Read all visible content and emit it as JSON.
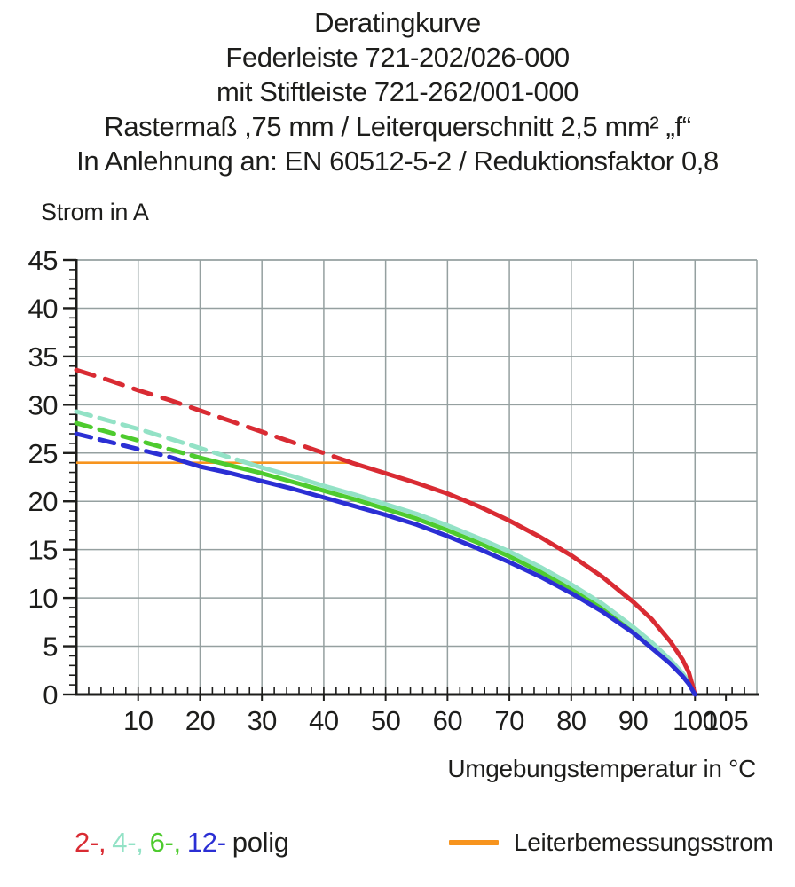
{
  "title": {
    "lines": [
      "Deratingkurve",
      "Federleiste 721-202/026-000",
      "mit Stiftleiste 721-262/001-000",
      "Rastermaß ,75 mm / Leiterquerschnitt 2,5 mm² „f“",
      "In Anlehnung an: EN 60512-5-2 / Reduktionsfaktor 0,8"
    ]
  },
  "axes": {
    "y_label": "Strom in A",
    "x_label": "Umgebungstemperatur in °C"
  },
  "legend": {
    "poles": [
      {
        "label": "2-,",
        "color": "#d92b33"
      },
      {
        "label": "4-,",
        "color": "#93e2c6"
      },
      {
        "label": "6-,",
        "color": "#4ecb2e"
      },
      {
        "label": "12-",
        "color": "#2b2fd4"
      }
    ],
    "suffix": "polig",
    "rated_label": "Leiterbemessungsstrom",
    "rated_color": "#f7941e"
  },
  "chart_data": {
    "type": "line",
    "title": "Deratingkurve",
    "xlabel": "Umgebungstemperatur in °C",
    "ylabel": "Strom in A",
    "xlim": [
      0,
      110
    ],
    "ylim": [
      0,
      45
    ],
    "xticks": [
      10,
      20,
      30,
      40,
      50,
      60,
      70,
      80,
      90,
      100,
      105
    ],
    "yticks": [
      0,
      5,
      10,
      15,
      20,
      25,
      30,
      35,
      40,
      45
    ],
    "x_gridlines": [
      10,
      20,
      30,
      40,
      50,
      60,
      70,
      80,
      90,
      100
    ],
    "y_gridlines": [
      5,
      10,
      15,
      20,
      25,
      30,
      35,
      40,
      45
    ],
    "x_minor_step": 2,
    "y_minor_step": 1,
    "grid": true,
    "grid_color": "#95a0a0",
    "axis_color": "#1d1d1b",
    "legend_position": "bottom",
    "series": [
      {
        "name": "2-polig",
        "color": "#d92b33",
        "z": 3,
        "dash_until_x": 44.5,
        "dash_pattern": "21 13",
        "points": [
          [
            0,
            33.6
          ],
          [
            5,
            32.6
          ],
          [
            10,
            31.5
          ],
          [
            15,
            30.5
          ],
          [
            20,
            29.4
          ],
          [
            25,
            28.3
          ],
          [
            30,
            27.2
          ],
          [
            35,
            26.1
          ],
          [
            40,
            25.0
          ],
          [
            44.5,
            24.0
          ],
          [
            50,
            22.9
          ],
          [
            55,
            21.9
          ],
          [
            60,
            20.8
          ],
          [
            65,
            19.5
          ],
          [
            70,
            18.0
          ],
          [
            75,
            16.3
          ],
          [
            80,
            14.4
          ],
          [
            85,
            12.2
          ],
          [
            90,
            9.6
          ],
          [
            93,
            7.8
          ],
          [
            96,
            5.5
          ],
          [
            98,
            3.6
          ],
          [
            99,
            2.3
          ],
          [
            100,
            0
          ]
        ]
      },
      {
        "name": "4-polig",
        "color": "#93e2c6",
        "z": 2,
        "dash_until_x": 26,
        "dash_pattern": "17 10",
        "points": [
          [
            0,
            29.3
          ],
          [
            5,
            28.4
          ],
          [
            10,
            27.5
          ],
          [
            15,
            26.5
          ],
          [
            20,
            25.5
          ],
          [
            26,
            24.3
          ],
          [
            30,
            23.5
          ],
          [
            35,
            22.6
          ],
          [
            40,
            21.6
          ],
          [
            45,
            20.7
          ],
          [
            50,
            19.7
          ],
          [
            55,
            18.7
          ],
          [
            60,
            17.5
          ],
          [
            65,
            16.2
          ],
          [
            70,
            14.8
          ],
          [
            75,
            13.2
          ],
          [
            80,
            11.4
          ],
          [
            85,
            9.4
          ],
          [
            90,
            7.0
          ],
          [
            93,
            5.4
          ],
          [
            96,
            3.6
          ],
          [
            98,
            2.2
          ],
          [
            99,
            1.3
          ],
          [
            100,
            0
          ]
        ]
      },
      {
        "name": "6-polig",
        "color": "#4ecb2e",
        "z": 1,
        "dash_until_x": 20,
        "dash_pattern": "17 10",
        "points": [
          [
            0,
            28.1
          ],
          [
            5,
            27.2
          ],
          [
            10,
            26.3
          ],
          [
            15,
            25.4
          ],
          [
            20,
            24.5
          ],
          [
            25,
            23.7
          ],
          [
            30,
            22.9
          ],
          [
            35,
            22.0
          ],
          [
            40,
            21.1
          ],
          [
            45,
            20.2
          ],
          [
            50,
            19.2
          ],
          [
            55,
            18.2
          ],
          [
            60,
            17.0
          ],
          [
            65,
            15.7
          ],
          [
            70,
            14.3
          ],
          [
            75,
            12.7
          ],
          [
            80,
            11.0
          ],
          [
            85,
            9.0
          ],
          [
            90,
            6.7
          ],
          [
            93,
            5.1
          ],
          [
            96,
            3.4
          ],
          [
            98,
            2.1
          ],
          [
            99,
            1.2
          ],
          [
            100,
            0
          ]
        ]
      },
      {
        "name": "12-polig",
        "color": "#2b2fd4",
        "z": 4,
        "dash_until_x": 17.5,
        "dash_pattern": "17 10",
        "points": [
          [
            0,
            27.0
          ],
          [
            5,
            26.2
          ],
          [
            10,
            25.4
          ],
          [
            15,
            24.6
          ],
          [
            17.5,
            24.1
          ],
          [
            20,
            23.6
          ],
          [
            25,
            22.9
          ],
          [
            30,
            22.1
          ],
          [
            35,
            21.3
          ],
          [
            40,
            20.4
          ],
          [
            45,
            19.5
          ],
          [
            50,
            18.6
          ],
          [
            55,
            17.6
          ],
          [
            60,
            16.4
          ],
          [
            65,
            15.1
          ],
          [
            70,
            13.7
          ],
          [
            75,
            12.2
          ],
          [
            80,
            10.5
          ],
          [
            85,
            8.6
          ],
          [
            90,
            6.4
          ],
          [
            93,
            4.8
          ],
          [
            96,
            3.2
          ],
          [
            98,
            1.9
          ],
          [
            99,
            1.1
          ],
          [
            100,
            0
          ]
        ]
      }
    ],
    "reference_line": {
      "label": "Leiterbemessungsstrom",
      "y": 24,
      "x_start": 0,
      "x_end": 44.5,
      "color": "#f7941e"
    }
  }
}
